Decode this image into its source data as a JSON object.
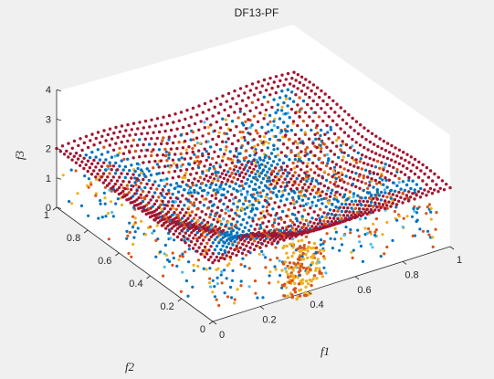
{
  "chart_data": {
    "type": "scatter",
    "title": "DF13-PF",
    "xlabel": "f1",
    "ylabel": "f2",
    "zlabel": "f3",
    "xlim": [
      0,
      1
    ],
    "ylim": [
      0,
      1
    ],
    "zlim": [
      0,
      4
    ],
    "xticks": [
      "0",
      "0.2",
      "0.4",
      "0.6",
      "0.8",
      "1"
    ],
    "yticks": [
      "0",
      "0.2",
      "0.4",
      "0.6",
      "0.8",
      "1"
    ],
    "zticks": [
      "0",
      "1",
      "2",
      "3",
      "4"
    ],
    "grid": false,
    "series": [
      {
        "color": "#0072bd"
      },
      {
        "color": "#d95319"
      },
      {
        "color": "#edb120"
      },
      {
        "color": "#a2142f"
      },
      {
        "color": "#4dbeee"
      }
    ]
  }
}
